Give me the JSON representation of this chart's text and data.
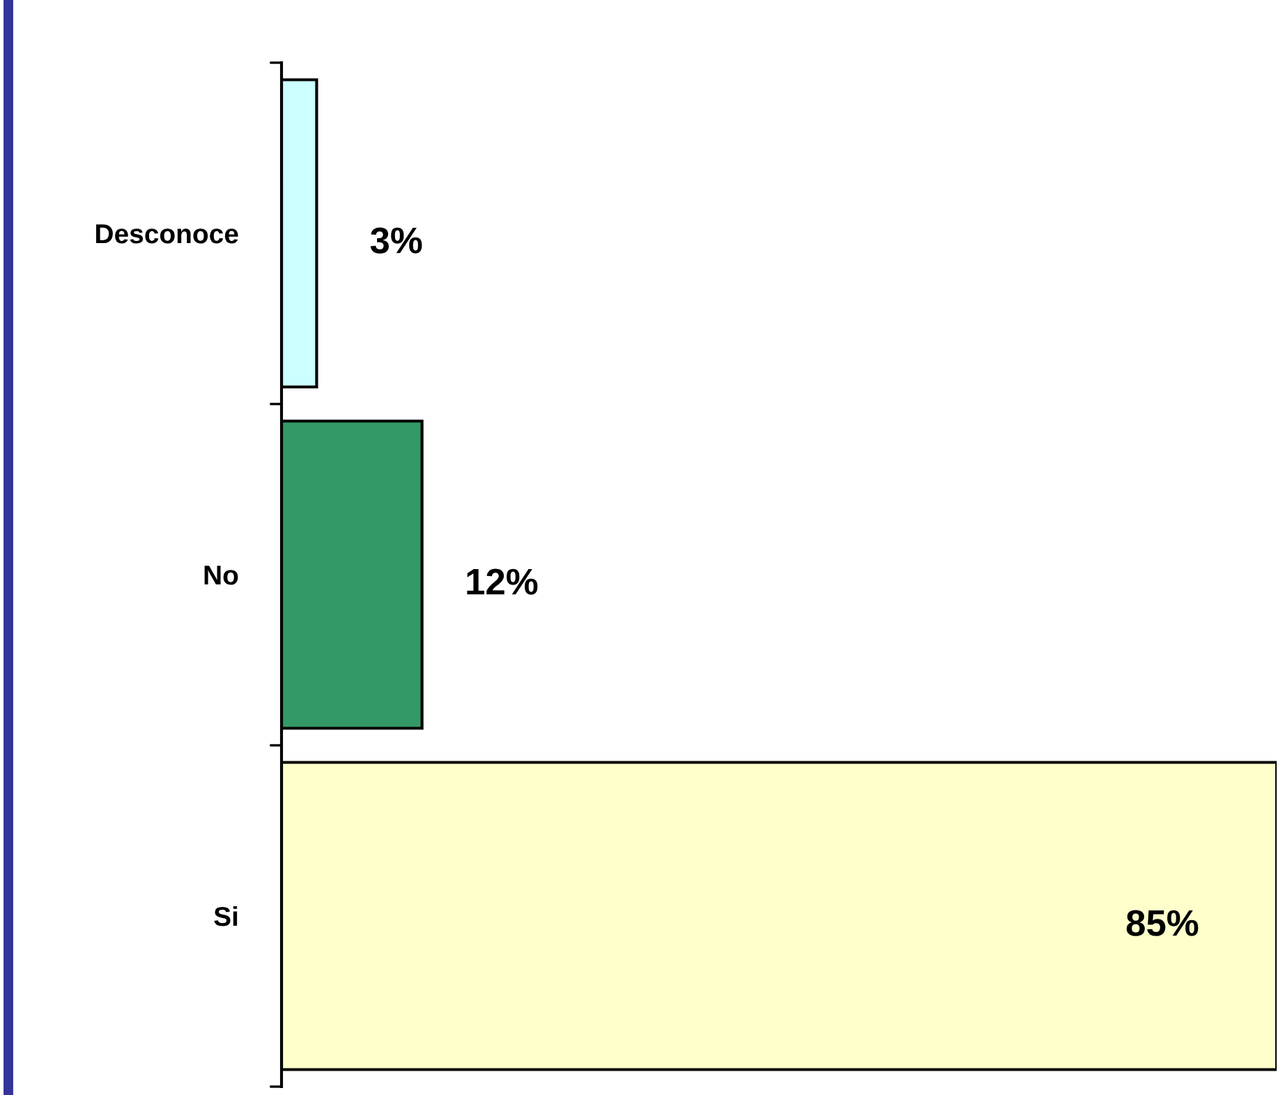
{
  "chart_data": {
    "type": "bar",
    "orientation": "horizontal",
    "categories": [
      "Desconoce",
      "No",
      "Si"
    ],
    "values": [
      3,
      12,
      85
    ],
    "colors": [
      "#ccffff",
      "#339966",
      "#ffffcc"
    ],
    "value_labels": [
      "3%",
      "12%",
      "85%"
    ],
    "grid": false,
    "legend": false
  }
}
